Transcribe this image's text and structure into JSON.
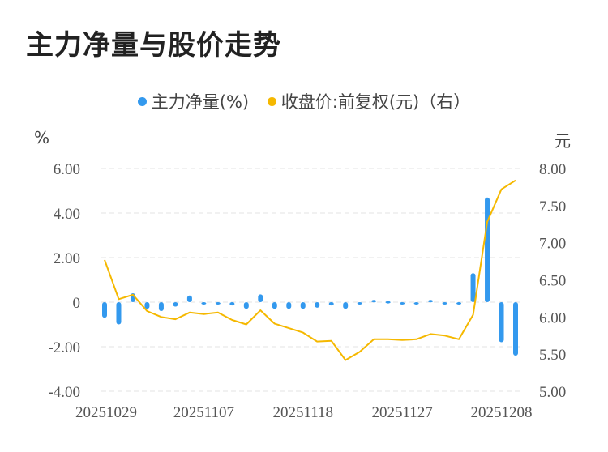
{
  "title": "主力净量与股价走势",
  "legend": [
    {
      "label": "主力净量(%)",
      "color": "#3399ee"
    },
    {
      "label": "收盘价:前复权(元)（右）",
      "color": "#f5b800"
    }
  ],
  "left_unit": "%",
  "right_unit": "元",
  "chart_data": {
    "type": "bar+line",
    "x_tick_labels": [
      "20251029",
      "20251107",
      "20251118",
      "20251127",
      "20251208"
    ],
    "left_axis": {
      "label": "%",
      "ylim": [
        -4,
        6
      ],
      "ticks": [
        "6.00",
        "4.00",
        "2.00",
        "0",
        "-2.00",
        "-4.00"
      ],
      "tick_values": [
        6,
        4,
        2,
        0,
        -2,
        -4
      ]
    },
    "right_axis": {
      "label": "元",
      "ylim": [
        5.0,
        8.0
      ],
      "ticks": [
        "8.00",
        "7.50",
        "7.00",
        "6.50",
        "6.00",
        "5.50",
        "5.00"
      ],
      "tick_values": [
        8.0,
        7.5,
        7.0,
        6.5,
        6.0,
        5.5,
        5.0
      ]
    },
    "grid": true,
    "series": [
      {
        "name": "主力净量(%)",
        "type": "bar",
        "axis": "left",
        "color": "#3399ee",
        "values": [
          -0.7,
          -1.0,
          0.4,
          -0.3,
          -0.4,
          -0.2,
          0.3,
          -0.05,
          -0.05,
          -0.15,
          -0.3,
          0.35,
          -0.3,
          -0.3,
          -0.3,
          -0.25,
          -0.15,
          -0.3,
          -0.05,
          0.1,
          0.05,
          -0.1,
          -0.05,
          0.1,
          -0.05,
          -0.05,
          1.3,
          4.7,
          -1.8,
          -2.4
        ]
      },
      {
        "name": "收盘价:前复权(元)（右）",
        "type": "line",
        "axis": "right",
        "color": "#f5b800",
        "values": [
          6.77,
          6.24,
          6.3,
          6.08,
          6.0,
          5.97,
          6.06,
          6.04,
          6.06,
          5.96,
          5.9,
          6.09,
          5.91,
          5.85,
          5.79,
          5.67,
          5.68,
          5.42,
          5.53,
          5.7,
          5.7,
          5.69,
          5.7,
          5.77,
          5.75,
          5.7,
          6.03,
          7.28,
          7.72,
          7.84
        ]
      }
    ]
  }
}
